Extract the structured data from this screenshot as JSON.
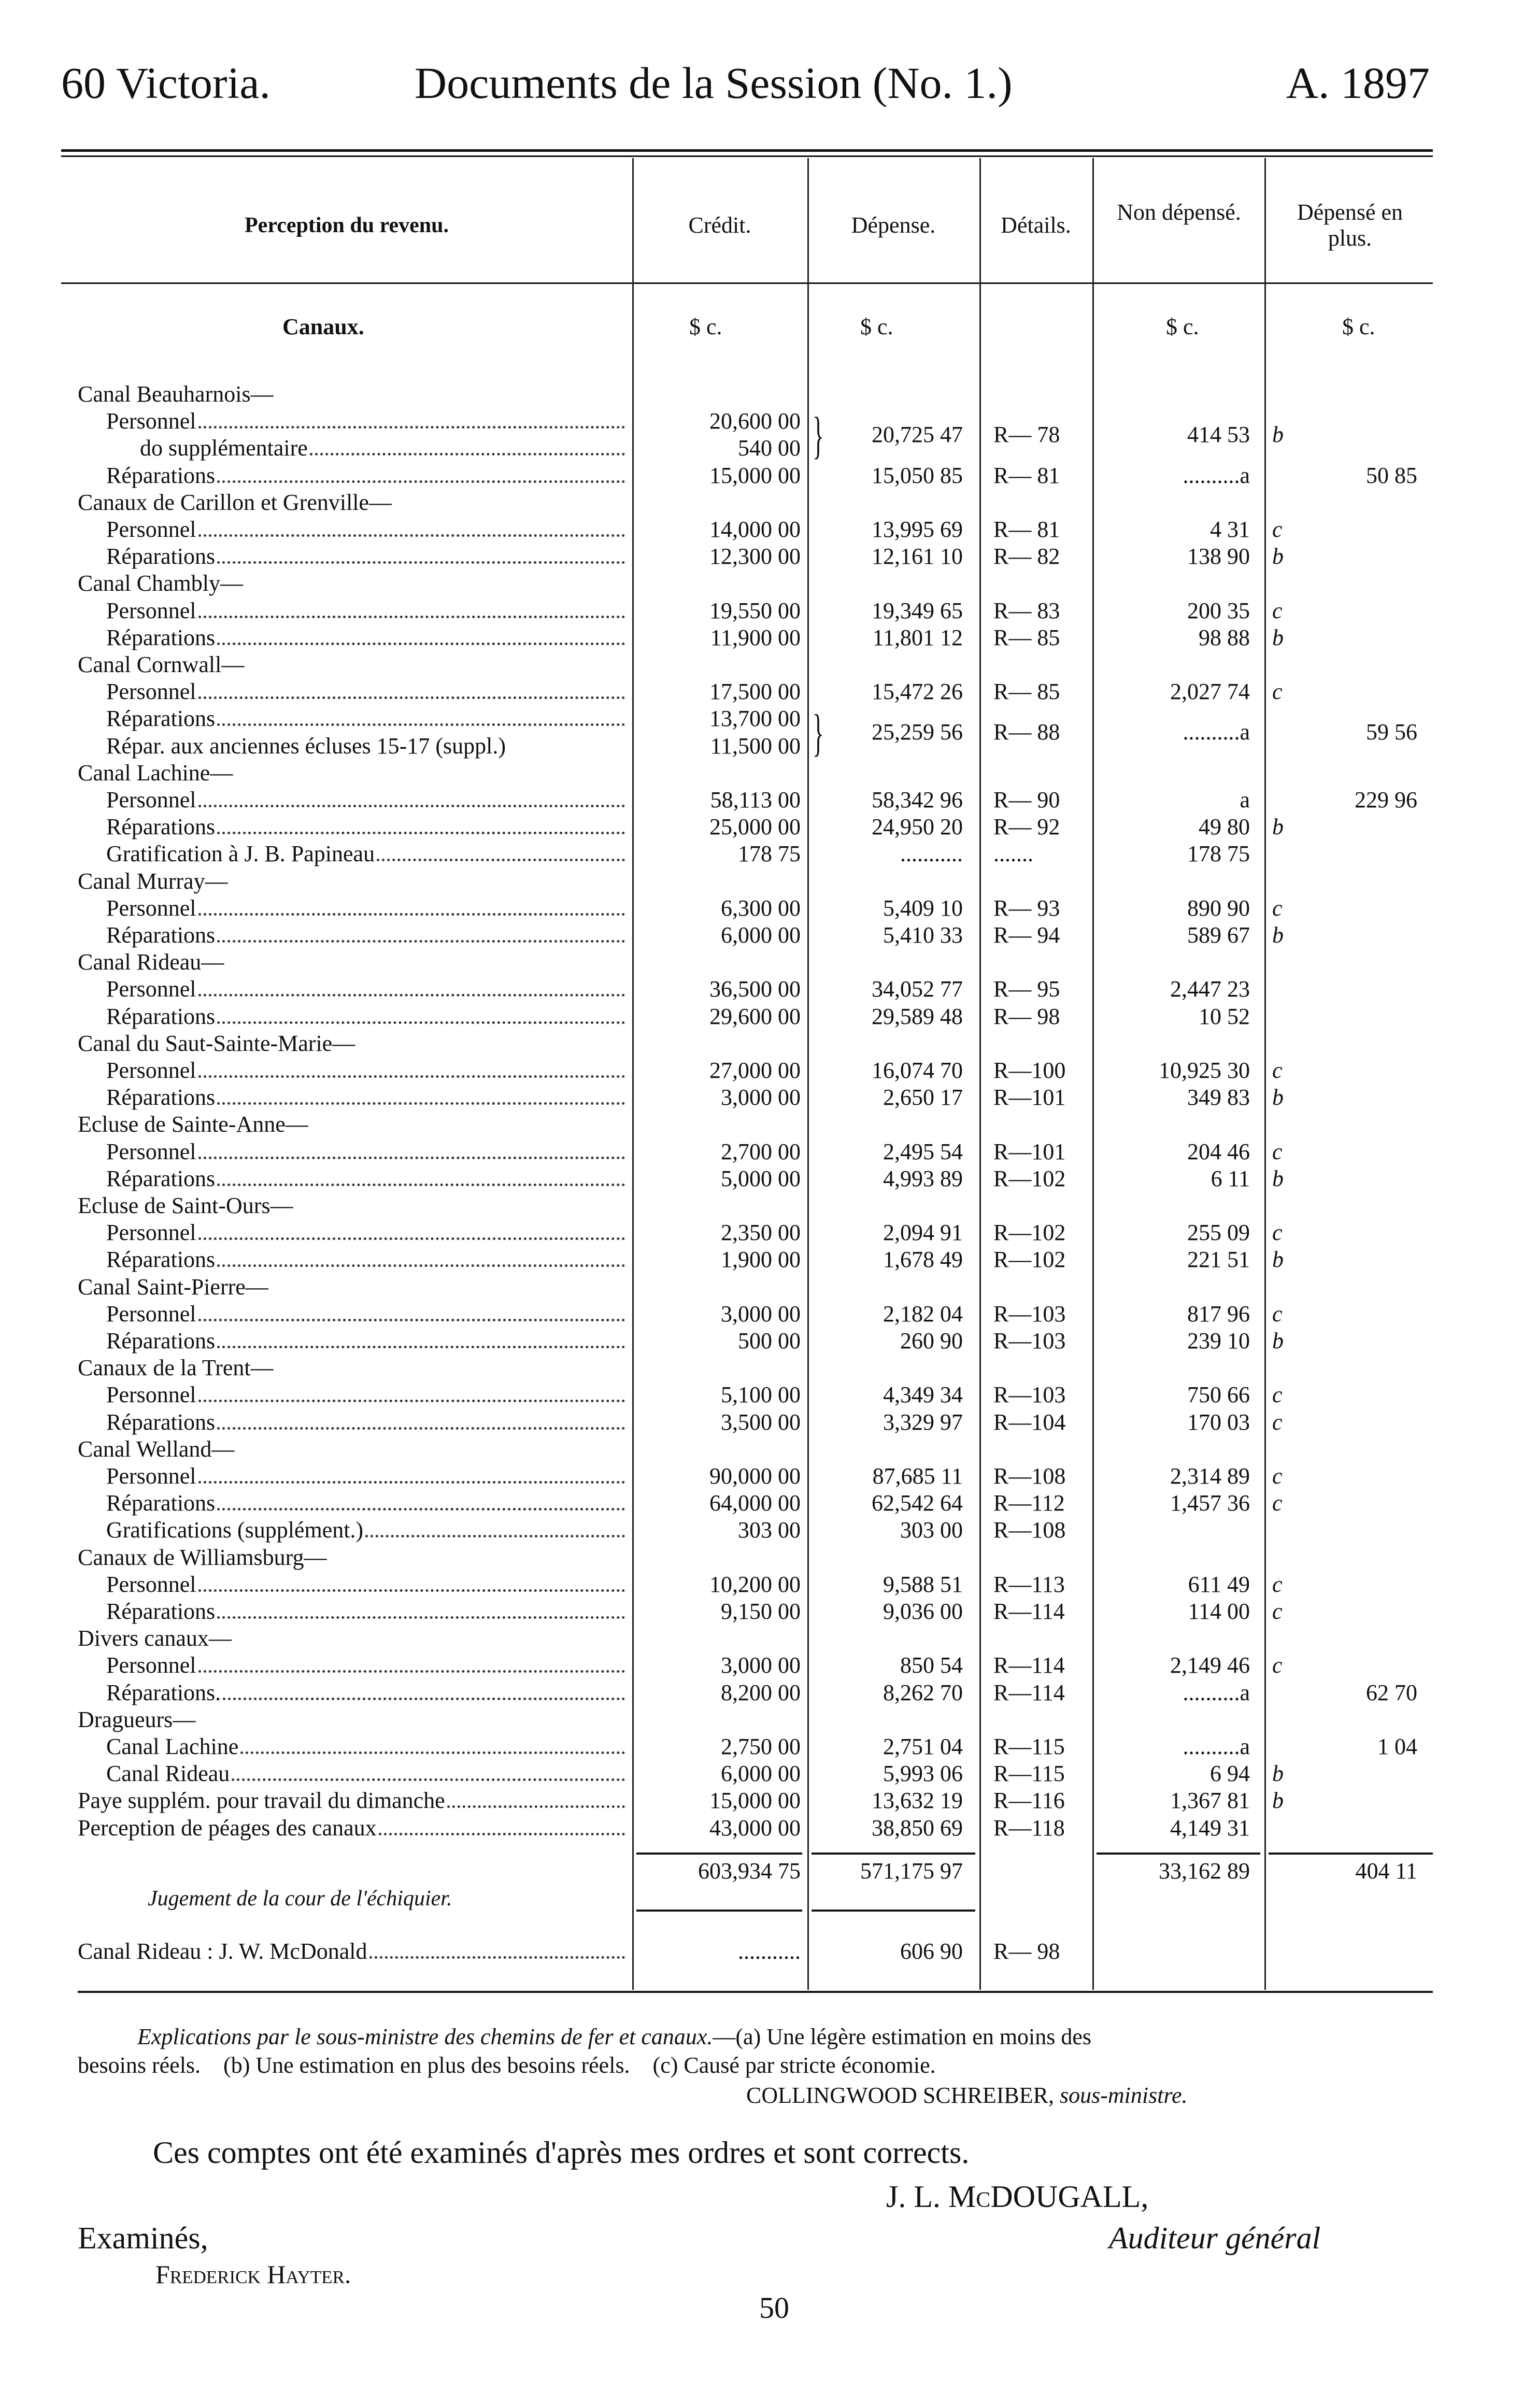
{
  "header": {
    "left": "60 Victoria.",
    "center": "Documents de la Session (No. 1.)",
    "right": "A. 1897"
  },
  "table": {
    "section_title": "Perception du revenu.",
    "columns": {
      "credit": "Crédit.",
      "depense": "Dépense.",
      "details": "Détails.",
      "non_depense": "Non dépensé.",
      "plus": "Dépensé en plus."
    },
    "subheader": "Canaux.",
    "units": {
      "credit": "$   c.",
      "depense": "$   c.",
      "non_depense": "$   c.",
      "plus": "$   c."
    },
    "rows": [
      {
        "label": "Canal Beauharnois—",
        "level": 0
      },
      {
        "label": "Personnel",
        "level": 1,
        "credit": "20,600 00",
        "depense": "20,725 47",
        "details": "R— 78",
        "non_depense": "414 53",
        "note": "b",
        "group": "brace"
      },
      {
        "label": "do      supplémentaire",
        "level": 2,
        "credit": "540 00"
      },
      {
        "label": "Réparations",
        "level": 1,
        "credit": "15,000 00",
        "depense": "15,050 85",
        "details": "R— 81",
        "non_depense": "..........a",
        "plus": "50 85"
      },
      {
        "label": "Canaux de Carillon et Grenville—",
        "level": 0
      },
      {
        "label": "Personnel",
        "level": 1,
        "credit": "14,000 00",
        "depense": "13,995 69",
        "details": "R— 81",
        "non_depense": "4 31",
        "note": "c"
      },
      {
        "label": "Réparations",
        "level": 1,
        "credit": "12,300 00",
        "depense": "12,161 10",
        "details": "R— 82",
        "non_depense": "138 90",
        "note": "b"
      },
      {
        "label": "Canal Chambly—",
        "level": 0
      },
      {
        "label": "Personnel",
        "level": 1,
        "credit": "19,550 00",
        "depense": "19,349 65",
        "details": "R— 83",
        "non_depense": "200 35",
        "note": "c"
      },
      {
        "label": "Réparations",
        "level": 1,
        "credit": "11,900 00",
        "depense": "11,801 12",
        "details": "R— 85",
        "non_depense": "98 88",
        "note": "b"
      },
      {
        "label": "Canal Cornwall—",
        "level": 0
      },
      {
        "label": "Personnel",
        "level": 1,
        "credit": "17,500 00",
        "depense": "15,472 26",
        "details": "R— 85",
        "non_depense": "2,027 74",
        "note": "c"
      },
      {
        "label": "Réparations",
        "level": 1,
        "credit": "13,700 00",
        "depense": "25,259 56",
        "details": "R— 88",
        "non_depense": "..........a",
        "plus": "59 56",
        "group": "brace"
      },
      {
        "label": "Répar. aux anciennes écluses 15-17 (suppl.)",
        "level": 1,
        "credit": "11,500 00",
        "noleader": true
      },
      {
        "label": "Canal Lachine—",
        "level": 0
      },
      {
        "label": "Personnel",
        "level": 1,
        "credit": "58,113 00",
        "depense": "58,342 96",
        "details": "R— 90",
        "non_depense": "a",
        "plus": "229 96"
      },
      {
        "label": "Réparations",
        "level": 1,
        "credit": "25,000 00",
        "depense": "24,950 20",
        "details": "R— 92",
        "non_depense": "49 80",
        "note": "b"
      },
      {
        "label": "Gratification à J. B. Papineau",
        "level": 1,
        "credit": "178 75",
        "depense": "...........",
        "details": ".......",
        "non_depense": "178 75"
      },
      {
        "label": "Canal Murray—",
        "level": 0
      },
      {
        "label": "Personnel",
        "level": 1,
        "credit": "6,300 00",
        "depense": "5,409 10",
        "details": "R— 93",
        "non_depense": "890 90",
        "note": "c"
      },
      {
        "label": "Réparations",
        "level": 1,
        "credit": "6,000 00",
        "depense": "5,410 33",
        "details": "R— 94",
        "non_depense": "589 67",
        "note": "b"
      },
      {
        "label": "Canal Rideau—",
        "level": 0
      },
      {
        "label": "Personnel",
        "level": 1,
        "credit": "36,500 00",
        "depense": "34,052 77",
        "details": "R— 95",
        "non_depense": "2,447 23"
      },
      {
        "label": "Réparations",
        "level": 1,
        "credit": "29,600 00",
        "depense": "29,589 48",
        "details": "R— 98",
        "non_depense": "10 52"
      },
      {
        "label": "Canal du Saut-Sainte-Marie—",
        "level": 0
      },
      {
        "label": "Personnel",
        "level": 1,
        "credit": "27,000 00",
        "depense": "16,074 70",
        "details": "R—100",
        "non_depense": "10,925 30",
        "note": "c"
      },
      {
        "label": "Réparations",
        "level": 1,
        "credit": "3,000 00",
        "depense": "2,650 17",
        "details": "R—101",
        "non_depense": "349 83",
        "note": "b"
      },
      {
        "label": "Ecluse de Sainte-Anne—",
        "level": 0
      },
      {
        "label": "Personnel",
        "level": 1,
        "credit": "2,700 00",
        "depense": "2,495 54",
        "details": "R—101",
        "non_depense": "204 46",
        "note": "c"
      },
      {
        "label": "Réparations",
        "level": 1,
        "credit": "5,000 00",
        "depense": "4,993 89",
        "details": "R—102",
        "non_depense": "6 11",
        "note": "b"
      },
      {
        "label": "Ecluse de Saint-Ours—",
        "level": 0
      },
      {
        "label": "Personnel",
        "level": 1,
        "credit": "2,350 00",
        "depense": "2,094 91",
        "details": "R—102",
        "non_depense": "255 09",
        "note": "c"
      },
      {
        "label": "Réparations",
        "level": 1,
        "credit": "1,900 00",
        "depense": "1,678 49",
        "details": "R—102",
        "non_depense": "221 51",
        "note": "b"
      },
      {
        "label": "Canal Saint-Pierre—",
        "level": 0
      },
      {
        "label": "Personnel",
        "level": 1,
        "credit": "3,000 00",
        "depense": "2,182 04",
        "details": "R—103",
        "non_depense": "817 96",
        "note": "c"
      },
      {
        "label": "Réparations",
        "level": 1,
        "credit": "500 00",
        "depense": "260 90",
        "details": "R—103",
        "non_depense": "239 10",
        "note": "b"
      },
      {
        "label": "Canaux de la Trent—",
        "level": 0
      },
      {
        "label": "Personnel",
        "level": 1,
        "credit": "5,100 00",
        "depense": "4,349 34",
        "details": "R—103",
        "non_depense": "750 66",
        "note": "c"
      },
      {
        "label": "Réparations",
        "level": 1,
        "credit": "3,500 00",
        "depense": "3,329 97",
        "details": "R—104",
        "non_depense": "170 03",
        "note": "c"
      },
      {
        "label": "Canal Welland—",
        "level": 0
      },
      {
        "label": "Personnel",
        "level": 1,
        "credit": "90,000 00",
        "depense": "87,685 11",
        "details": "R—108",
        "non_depense": "2,314 89",
        "note": "c"
      },
      {
        "label": "Réparations",
        "level": 1,
        "credit": "64,000 00",
        "depense": "62,542 64",
        "details": "R—112",
        "non_depense": "1,457 36",
        "note": "c"
      },
      {
        "label": "Gratifications (supplément.)",
        "level": 1,
        "credit": "303 00",
        "depense": "303 00",
        "details": "R—108"
      },
      {
        "label": "Canaux de Williamsburg—",
        "level": 0
      },
      {
        "label": "Personnel",
        "level": 1,
        "credit": "10,200 00",
        "depense": "9,588 51",
        "details": "R—113",
        "non_depense": "611 49",
        "note": "c"
      },
      {
        "label": "Réparations",
        "level": 1,
        "credit": "9,150 00",
        "depense": "9,036 00",
        "details": "R—114",
        "non_depense": "114 00",
        "note": "c"
      },
      {
        "label": "Divers canaux—",
        "level": 0
      },
      {
        "label": "Personnel",
        "level": 1,
        "credit": "3,000 00",
        "depense": "850 54",
        "details": "R—114",
        "non_depense": "2,149 46",
        "note": "c"
      },
      {
        "label": "Réparations.",
        "level": 1,
        "credit": "8,200 00",
        "depense": "8,262 70",
        "details": "R—114",
        "non_depense": "..........a",
        "plus": "62 70"
      },
      {
        "label": "Dragueurs—",
        "level": 0
      },
      {
        "label": "Canal Lachine",
        "level": 1,
        "credit": "2,750 00",
        "depense": "2,751 04",
        "details": "R—115",
        "non_depense": "..........a",
        "plus": "1 04"
      },
      {
        "label": "Canal Rideau",
        "level": 1,
        "credit": "6,000 00",
        "depense": "5,993 06",
        "details": "R—115",
        "non_depense": "6 94",
        "note": "b"
      },
      {
        "label": "Paye supplém. pour travail du dimanche",
        "level": 0,
        "credit": "15,000 00",
        "depense": "13,632 19",
        "details": "R—116",
        "non_depense": "1,367 81",
        "note": "b"
      },
      {
        "label": "Perception de péages des canaux",
        "level": 0,
        "credit": "43,000 00",
        "depense": "38,850 69",
        "details": "R—118",
        "non_depense": "4,149 31"
      }
    ],
    "totals": {
      "credit": "603,934 75",
      "depense": "571,175 97",
      "non_depense": "33,162 89",
      "plus": "404 11"
    },
    "judgment_title": "Jugement de la cour de l'échiquier.",
    "judgment_row": {
      "label": "Canal Rideau : J. W. McDonald",
      "credit": "...........",
      "depense": "606 90",
      "details": "R— 98"
    }
  },
  "footnote": {
    "line1_italic": "Explications par le sous-ministre des chemins de fer et canaux.",
    "line1_rest": "—(a) Une légère estimation en moins des",
    "line2": "besoins réels.    (b) Une estimation en plus des besoins réels.    (c) Causé par stricte économie.",
    "signer": "COLLINGWOOD SCHREIBER,",
    "signer_title": "sous-ministre."
  },
  "certification": "Ces comptes ont été examinés d'après mes ordres et sont corrects.",
  "auditor": {
    "name": "J. L. McDOUGALL,",
    "title": "Auditeur général"
  },
  "examined": {
    "label": "Examinés,",
    "name": "Frederick Hayter."
  },
  "page_number": "50"
}
